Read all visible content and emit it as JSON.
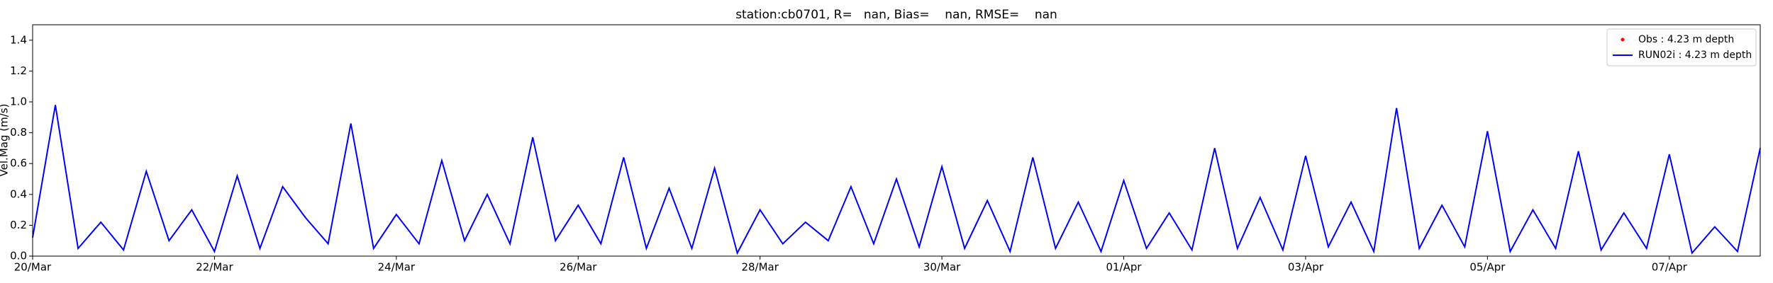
{
  "chart_data": {
    "type": "line",
    "title": "station:cb0701, R=   nan, Bias=    nan, RMSE=    nan",
    "y_label": "Vel.Mag (m/s)",
    "xlim": [
      0,
      19
    ],
    "ylim": [
      0,
      1.5
    ],
    "xticks": [
      {
        "value": 0,
        "label": "20/Mar"
      },
      {
        "value": 2,
        "label": "22/Mar"
      },
      {
        "value": 4,
        "label": "24/Mar"
      },
      {
        "value": 6,
        "label": "26/Mar"
      },
      {
        "value": 8,
        "label": "28/Mar"
      },
      {
        "value": 10,
        "label": "30/Mar"
      },
      {
        "value": 12,
        "label": "01/Apr"
      },
      {
        "value": 14,
        "label": "03/Apr"
      },
      {
        "value": 16,
        "label": "05/Apr"
      },
      {
        "value": 18,
        "label": "07/Apr"
      }
    ],
    "yticks": [
      {
        "value": 0,
        "label": "0.0"
      },
      {
        "value": 0.2,
        "label": "0.2"
      },
      {
        "value": 0.4,
        "label": "0.4"
      },
      {
        "value": 0.6,
        "label": "0.6"
      },
      {
        "value": 0.8,
        "label": "0.8"
      },
      {
        "value": 1,
        "label": "1.0"
      },
      {
        "value": 1.2,
        "label": "1.2"
      },
      {
        "value": 1.4,
        "label": "1.4"
      }
    ],
    "legend": "upper right",
    "x": [
      0,
      0.25,
      0.5,
      0.75,
      1,
      1.25,
      1.5,
      1.75,
      2,
      2.25,
      2.5,
      2.75,
      3,
      3.25,
      3.5,
      3.75,
      4,
      4.25,
      4.5,
      4.75,
      5,
      5.25,
      5.5,
      5.75,
      6,
      6.25,
      6.5,
      6.75,
      7,
      7.25,
      7.5,
      7.75,
      8,
      8.25,
      8.5,
      8.75,
      9,
      9.25,
      9.5,
      9.75,
      10,
      10.25,
      10.5,
      10.75,
      11,
      11.25,
      11.5,
      11.75,
      12,
      12.25,
      12.5,
      12.75,
      13,
      13.25,
      13.5,
      13.75,
      14,
      14.25,
      14.5,
      14.75,
      15,
      15.25,
      15.5,
      15.75,
      16,
      16.25,
      16.5,
      16.75,
      17,
      17.25,
      17.5,
      17.75,
      18,
      18.25,
      18.5,
      18.75,
      19
    ],
    "series": [
      {
        "name": "Obs : 4.23 m depth",
        "color": "#ff0000",
        "marker": "dot",
        "values": [
          null,
          null,
          null,
          null,
          null,
          null,
          null,
          null,
          null,
          null,
          null,
          null,
          null,
          null,
          null,
          null,
          null,
          null,
          null,
          null,
          null,
          null,
          null,
          null,
          null,
          null,
          null,
          null,
          null,
          null,
          null,
          null,
          null,
          null,
          null,
          null,
          null,
          null,
          null,
          null,
          null,
          null,
          null,
          null,
          null,
          null,
          null,
          null,
          null,
          null,
          null,
          null,
          null,
          null,
          null,
          null,
          null,
          null,
          null,
          null,
          null,
          null,
          null,
          null,
          null,
          null,
          null,
          null,
          null,
          null,
          null,
          null,
          null,
          null,
          null,
          null,
          null
        ]
      },
      {
        "name": "RUN02i : 4.23 m depth",
        "color": "#0000ff",
        "values": [
          0.12,
          0.98,
          0.05,
          0.22,
          0.04,
          0.55,
          0.1,
          0.3,
          0.03,
          0.52,
          0.05,
          0.45,
          0.25,
          0.08,
          0.86,
          0.05,
          0.27,
          0.08,
          0.62,
          0.1,
          0.4,
          0.08,
          0.77,
          0.1,
          0.33,
          0.08,
          0.64,
          0.05,
          0.44,
          0.05,
          0.57,
          0.02,
          0.3,
          0.08,
          0.22,
          0.1,
          0.45,
          0.08,
          0.5,
          0.06,
          0.58,
          0.05,
          0.36,
          0.03,
          0.64,
          0.05,
          0.35,
          0.03,
          0.49,
          0.05,
          0.28,
          0.04,
          0.7,
          0.05,
          0.38,
          0.04,
          0.65,
          0.06,
          0.35,
          0.03,
          0.96,
          0.05,
          0.33,
          0.06,
          0.81,
          0.03,
          0.3,
          0.05,
          0.68,
          0.04,
          0.28,
          0.05,
          0.66,
          0.02,
          0.19,
          0.03,
          0.7
        ]
      }
    ]
  }
}
